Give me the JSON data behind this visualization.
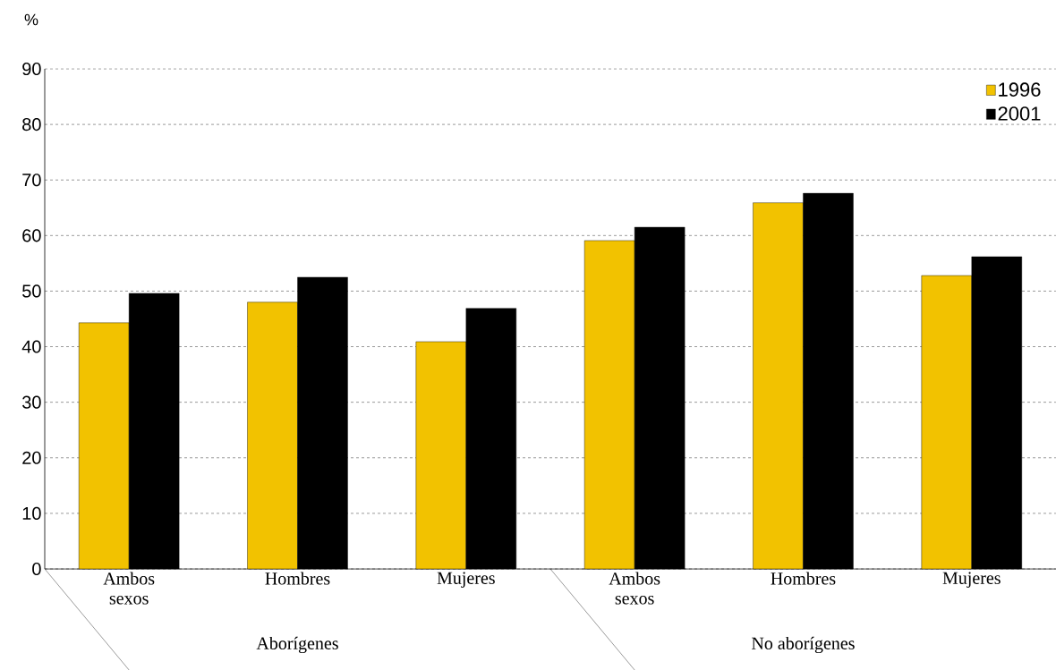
{
  "chart_data": {
    "type": "bar",
    "ylabel": "%",
    "categories": [
      "Ambos sexos",
      "Hombres",
      "Mujeres",
      "Ambos sexos",
      "Hombres",
      "Mujeres"
    ],
    "series": [
      {
        "name": "1996",
        "color": "#f2c200",
        "values": [
          44.3,
          48.0,
          40.9,
          59.1,
          65.9,
          52.8
        ]
      },
      {
        "name": "2001",
        "color": "#000000",
        "values": [
          49.6,
          52.5,
          46.9,
          61.5,
          67.6,
          56.2
        ]
      }
    ],
    "ylim": [
      0,
      90
    ],
    "yticks": [
      0,
      10,
      20,
      30,
      40,
      50,
      60,
      70,
      80,
      90
    ],
    "grid": "y",
    "legend": "top right",
    "annotations": [
      "Aborígenes",
      "No aborígenes"
    ]
  }
}
